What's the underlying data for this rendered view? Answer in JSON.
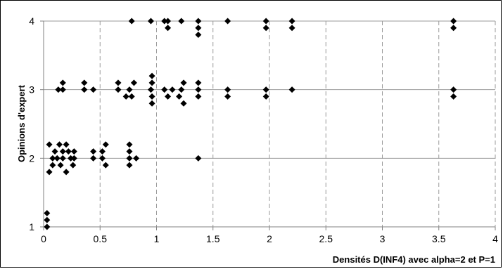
{
  "chart_data": {
    "type": "scatter",
    "title": "",
    "xlabel": "Densités D(INF4) avec alpha=2 et P=1",
    "ylabel": "Opinions d'expert",
    "xlim": [
      0,
      4
    ],
    "ylim": [
      1,
      4
    ],
    "x_ticks": [
      "0",
      "0.5",
      "1",
      "1.5",
      "2",
      "2.5",
      "3",
      "3.5",
      "4"
    ],
    "y_ticks": [
      "1",
      "2",
      "3",
      "4"
    ],
    "grid": {
      "vertical": "dashed",
      "horizontal": "solid"
    },
    "marker": {
      "shape": "diamond",
      "color": "#000000"
    },
    "series": [
      {
        "points": [
          [
            0.03,
            1.2
          ],
          [
            0.03,
            1.1
          ],
          [
            0.03,
            1.0
          ],
          [
            0.05,
            1.8
          ],
          [
            0.05,
            2.2
          ],
          [
            0.08,
            1.9
          ],
          [
            0.08,
            2.0
          ],
          [
            0.1,
            2.1
          ],
          [
            0.12,
            2.0
          ],
          [
            0.14,
            2.2
          ],
          [
            0.15,
            1.9
          ],
          [
            0.17,
            2.1
          ],
          [
            0.17,
            2.0
          ],
          [
            0.2,
            1.8
          ],
          [
            0.2,
            2.2
          ],
          [
            0.22,
            2.1
          ],
          [
            0.24,
            2.0
          ],
          [
            0.26,
            1.9
          ],
          [
            0.27,
            2.1
          ],
          [
            0.27,
            2.0
          ],
          [
            0.44,
            2.1
          ],
          [
            0.44,
            2.0
          ],
          [
            0.52,
            2.1
          ],
          [
            0.52,
            2.0
          ],
          [
            0.55,
            1.9
          ],
          [
            0.55,
            2.2
          ],
          [
            0.76,
            2.2
          ],
          [
            0.76,
            2.1
          ],
          [
            0.76,
            2.0
          ],
          [
            0.76,
            1.9
          ],
          [
            0.82,
            2.0
          ],
          [
            1.37,
            2.0
          ],
          [
            0.13,
            3.0
          ],
          [
            0.17,
            3.0
          ],
          [
            0.17,
            3.1
          ],
          [
            0.36,
            3.0
          ],
          [
            0.36,
            3.1
          ],
          [
            0.44,
            3.0
          ],
          [
            0.66,
            3.0
          ],
          [
            0.66,
            3.1
          ],
          [
            0.73,
            2.9
          ],
          [
            0.76,
            3.0
          ],
          [
            0.78,
            2.9
          ],
          [
            0.8,
            3.1
          ],
          [
            0.95,
            3.0
          ],
          [
            0.96,
            3.2
          ],
          [
            0.96,
            3.1
          ],
          [
            0.96,
            2.9
          ],
          [
            0.96,
            2.8
          ],
          [
            1.07,
            3.0
          ],
          [
            1.1,
            2.9
          ],
          [
            1.14,
            3.0
          ],
          [
            1.2,
            2.9
          ],
          [
            1.22,
            3.0
          ],
          [
            1.24,
            3.1
          ],
          [
            1.24,
            2.8
          ],
          [
            1.37,
            3.1
          ],
          [
            1.37,
            3.0
          ],
          [
            1.37,
            2.9
          ],
          [
            1.63,
            3.0
          ],
          [
            1.63,
            2.9
          ],
          [
            1.97,
            3.0
          ],
          [
            1.97,
            2.9
          ],
          [
            2.2,
            3.0
          ],
          [
            3.63,
            3.0
          ],
          [
            3.63,
            2.9
          ],
          [
            0.78,
            4.0
          ],
          [
            0.95,
            4.0
          ],
          [
            1.07,
            4.0
          ],
          [
            1.1,
            4.0
          ],
          [
            1.1,
            3.9
          ],
          [
            1.22,
            4.0
          ],
          [
            1.37,
            4.0
          ],
          [
            1.37,
            3.9
          ],
          [
            1.37,
            3.8
          ],
          [
            1.63,
            4.0
          ],
          [
            1.97,
            4.0
          ],
          [
            1.97,
            3.9
          ],
          [
            2.2,
            4.0
          ],
          [
            2.2,
            3.9
          ],
          [
            3.63,
            4.0
          ],
          [
            3.63,
            3.9
          ]
        ]
      }
    ]
  }
}
